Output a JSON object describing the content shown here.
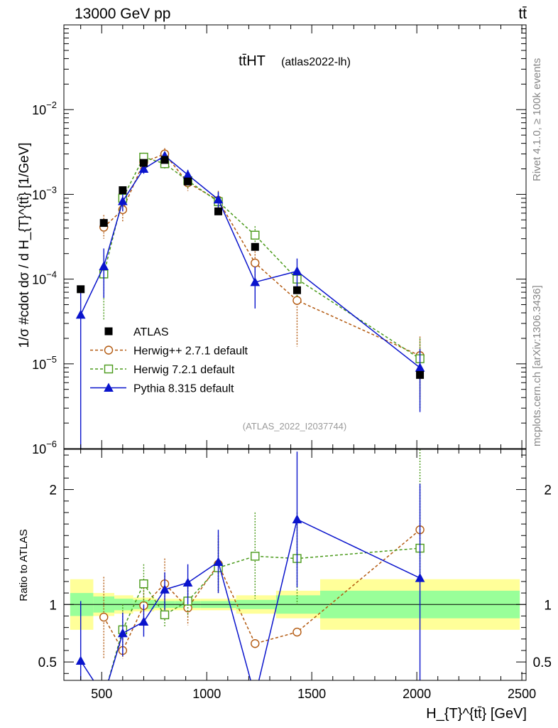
{
  "header": {
    "energy_label": "13000 GeV pp",
    "process_label": "tt̄"
  },
  "side_labels": {
    "rivet": "Rivet 4.1.0, ≥ 100k events",
    "mcplots": "mcplots.cern.ch [arXiv:1306.3436]"
  },
  "chart_data": {
    "type": "line",
    "title": "tt̄HT",
    "subtitle": "(atlas2022-lh)",
    "watermark": "(ATLAS_2022_I2037744)",
    "xlabel": "H_{T}^{tt̄} [GeV]",
    "ylabel": "1/σ #cdot dσ / d H_{T}^{tt̄} [1/GeV]",
    "ratio_ylabel": "Ratio to ATLAS",
    "xlim": [
      320,
      2520
    ],
    "ylim": [
      1e-06,
      0.1
    ],
    "ratio_ylim": [
      0.34,
      2.35
    ],
    "yscale": "log",
    "x_ticks": [
      500,
      1000,
      1500,
      2000,
      2500
    ],
    "x_tick_labels": [
      "500",
      "1000",
      "1500",
      "2000",
      "2500"
    ],
    "y_tick_labels": [
      {
        "value": 1e-06,
        "label": "10^{−6}"
      },
      {
        "value": 1e-05,
        "label": "10^{−5}"
      },
      {
        "value": 0.0001,
        "label": "10^{−4}"
      },
      {
        "value": 0.001,
        "label": "10^{−3}"
      },
      {
        "value": 0.01,
        "label": "10^{−2}"
      }
    ],
    "ratio_y_ticks": [
      {
        "value": 0.5,
        "label": "0.5"
      },
      {
        "value": 1,
        "label": "1"
      },
      {
        "value": 2,
        "label": "2"
      }
    ],
    "legend_position": "bottom-left",
    "data_series": {
      "name": "ATLAS",
      "color": "#000000",
      "x": [
        400,
        510,
        600,
        700,
        800,
        910,
        1055,
        1230,
        1430,
        2015
      ],
      "y": [
        7.6e-05,
        0.00046,
        0.00112,
        0.00235,
        0.00255,
        0.00142,
        0.00063,
        0.00024,
        7.4e-05,
        7.4e-06
      ]
    },
    "bins": [
      {
        "lo": 350,
        "hi": 460,
        "stat": 0.1,
        "total": 0.22
      },
      {
        "lo": 460,
        "hi": 560,
        "stat": 0.07,
        "total": 0.1
      },
      {
        "lo": 560,
        "hi": 650,
        "stat": 0.05,
        "total": 0.08
      },
      {
        "lo": 650,
        "hi": 750,
        "stat": 0.04,
        "total": 0.06
      },
      {
        "lo": 750,
        "hi": 850,
        "stat": 0.03,
        "total": 0.05
      },
      {
        "lo": 850,
        "hi": 970,
        "stat": 0.03,
        "total": 0.05
      },
      {
        "lo": 970,
        "hi": 1140,
        "stat": 0.03,
        "total": 0.05
      },
      {
        "lo": 1140,
        "hi": 1330,
        "stat": 0.04,
        "total": 0.08
      },
      {
        "lo": 1330,
        "hi": 1540,
        "stat": 0.08,
        "total": 0.12
      },
      {
        "lo": 1540,
        "hi": 2490,
        "stat": 0.12,
        "total": 0.22
      }
    ],
    "series": [
      {
        "name": "Herwig++ 2.7.1 default",
        "color": "#b3590f",
        "marker": "circle",
        "line": "dashed",
        "x": [
          510,
          600,
          700,
          800,
          910,
          1055,
          1230,
          1430,
          2015
        ],
        "y": [
          0.00041,
          0.00066,
          0.0024,
          0.003,
          0.00137,
          0.00085,
          0.000155,
          5.6e-05,
          1.25e-05
        ],
        "err_lo": [
          0.0003,
          0.00048,
          0.0021,
          0.0026,
          0.0011,
          0.00065,
          9e-05,
          1.6e-05,
          4e-06
        ],
        "err_hi": [
          0.00057,
          0.00086,
          0.0029,
          0.0035,
          0.00165,
          0.0011,
          0.00023,
          9.6e-05,
          2.1e-05
        ],
        "ratio": [
          0.89,
          0.6,
          0.99,
          1.18,
          0.97,
          1.35,
          0.66,
          0.76,
          1.65
        ],
        "ratio_lo": [
          0.53,
          0.53,
          0.8,
          1.0,
          0.82,
          1.1,
          0.66,
          0.76,
          1.65
        ],
        "ratio_hi": [
          1.24,
          0.78,
          1.17,
          1.4,
          1.12,
          1.6,
          0.66,
          0.76,
          1.65
        ]
      },
      {
        "name": "Herwig 7.2.1 default",
        "color": "#4a9a1a",
        "marker": "square",
        "line": "dashed",
        "x": [
          510,
          600,
          700,
          800,
          910,
          1055,
          1230,
          1430,
          2015
        ],
        "y": [
          0.000115,
          0.0009,
          0.00275,
          0.0023,
          0.00145,
          0.00082,
          0.00033,
          0.0001,
          1.15e-05
        ],
        "err_lo": [
          3.3e-05,
          0.00065,
          0.00235,
          0.002,
          0.0012,
          0.00062,
          0.00024,
          6e-05,
          3e-06
        ],
        "err_hi": [
          0.00019,
          0.00115,
          0.0031,
          0.00265,
          0.0017,
          0.00105,
          0.00042,
          0.00014,
          2e-05
        ],
        "ratio": [
          0.0,
          0.78,
          1.18,
          0.91,
          1.03,
          1.32,
          1.42,
          1.4,
          1.49
        ],
        "ratio_lo": [
          0.0,
          0.55,
          1.0,
          0.8,
          0.9,
          1.1,
          1.05,
          1.0,
          1.2
        ],
        "ratio_hi": [
          0.0,
          1.0,
          1.35,
          1.02,
          1.15,
          1.55,
          1.8,
          1.8,
          2.35
        ]
      },
      {
        "name": "Pythia 8.315 default",
        "color": "#0a14cc",
        "marker": "triangle",
        "line": "solid",
        "x": [
          400,
          510,
          600,
          700,
          800,
          910,
          1055,
          1230,
          1430,
          2015
        ],
        "y": [
          3.8e-05,
          0.000142,
          0.00083,
          0.002,
          0.00285,
          0.0017,
          0.00087,
          9.2e-05,
          0.000124,
          9e-06
        ],
        "err_lo": [
          1e-06,
          6e-05,
          0.00063,
          0.00175,
          0.0025,
          0.0015,
          0.00067,
          4.5e-05,
          7.4e-05,
          2.7e-06
        ],
        "err_hi": [
          7.5e-05,
          0.00023,
          0.00103,
          0.0023,
          0.0032,
          0.00195,
          0.00107,
          0.00014,
          0.000175,
          1.5e-05
        ],
        "ratio": [
          0.51,
          0.0,
          0.75,
          0.85,
          1.13,
          1.19,
          1.37,
          0.0,
          1.74,
          1.23
        ],
        "ratio_lo": [
          0.34,
          0.0,
          0.55,
          0.72,
          0.95,
          1.0,
          1.1,
          0.0,
          1.15,
          0.34
        ],
        "ratio_hi": [
          1.03,
          0.0,
          0.93,
          1.0,
          1.28,
          1.35,
          1.65,
          0.0,
          2.33,
          2.05
        ]
      }
    ]
  }
}
